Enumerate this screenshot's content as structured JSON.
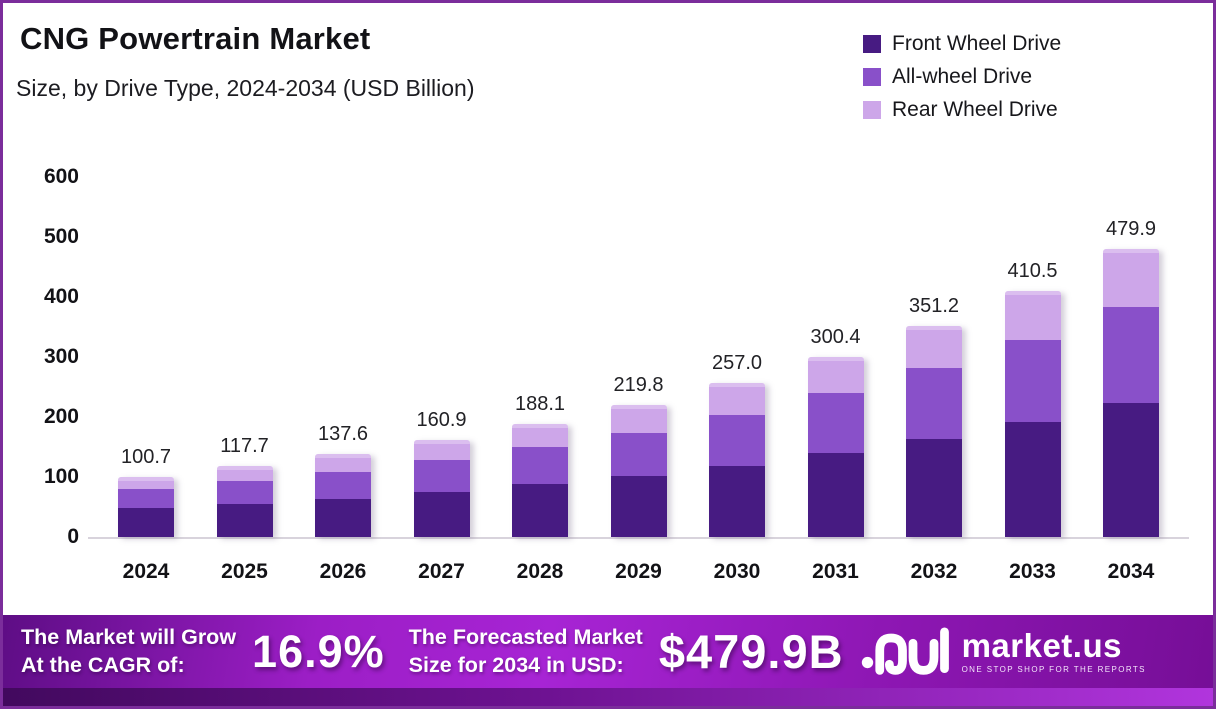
{
  "page": {
    "background": "#FFFFFF",
    "border_color": "#7B2D9B"
  },
  "header": {
    "title": "CNG Powertrain Market",
    "subtitle": "Size, by Drive Type, 2024-2034 (USD Billion)"
  },
  "legend": {
    "items": [
      {
        "label": "Front Wheel Drive",
        "color": "#471B82"
      },
      {
        "label": "All-wheel Drive",
        "color": "#8950C9"
      },
      {
        "label": "Rear Wheel Drive",
        "color": "#CDA6E9"
      }
    ]
  },
  "chart_data": {
    "type": "bar",
    "stacked": true,
    "title": "CNG Powertrain Market",
    "subtitle": "Size, by Drive Type, 2024-2034 (USD Billion)",
    "unit": "USD Billion",
    "categories": [
      "2024",
      "2025",
      "2026",
      "2027",
      "2028",
      "2029",
      "2030",
      "2031",
      "2032",
      "2033",
      "2034"
    ],
    "series": [
      {
        "name": "Front Wheel Drive",
        "color": "#471B82",
        "values": [
          47.5,
          55.0,
          64.0,
          75.0,
          87.7,
          102.3,
          118.9,
          140.0,
          162.5,
          191.0,
          223.0
        ]
      },
      {
        "name": "All-wheel Drive",
        "color": "#8950C9",
        "values": [
          32.5,
          38.5,
          45.0,
          52.8,
          61.6,
          71.8,
          84.6,
          99.6,
          118.5,
          137.5,
          160.9
        ]
      },
      {
        "name": "Rear Wheel Drive",
        "color": "#CDA6E9",
        "values": [
          20.7,
          24.2,
          28.6,
          33.1,
          38.8,
          45.7,
          53.5,
          60.8,
          70.2,
          82.0,
          96.0
        ]
      }
    ],
    "totals": [
      "100.7",
      "117.7",
      "137.6",
      "160.9",
      "188.1",
      "219.8",
      "257.0",
      "300.4",
      "351.2",
      "410.5",
      "479.9"
    ],
    "ylim": [
      0,
      600
    ],
    "yticks": [
      0,
      100,
      200,
      300,
      400,
      500,
      600
    ],
    "grid": false,
    "legend_position": "top-right"
  },
  "banner": {
    "cagr_label_line1": "The Market will Grow",
    "cagr_label_line2": "At the CAGR of:",
    "cagr_value": "16.9%",
    "forecast_label_line1": "The Forecasted Market",
    "forecast_label_line2": "Size for 2034 in USD:",
    "forecast_value": "$479.9B",
    "brand_name": "market.us",
    "brand_tagline": "ONE STOP SHOP FOR THE REPORTS"
  }
}
